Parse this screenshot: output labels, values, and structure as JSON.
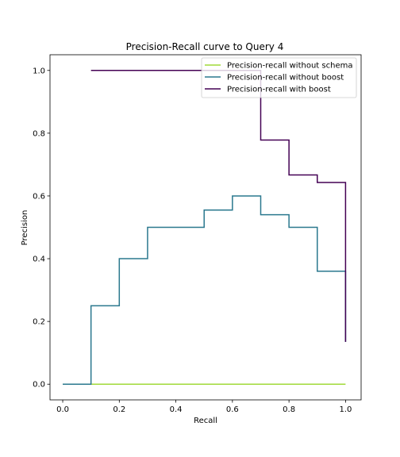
{
  "chart_data": {
    "type": "line",
    "title": "Precision-Recall curve to Query 4",
    "xlabel": "Recall",
    "ylabel": "Precision",
    "xlim": [
      -0.045,
      1.055
    ],
    "ylim": [
      -0.05,
      1.05
    ],
    "xticks": [
      0.0,
      0.2,
      0.4,
      0.6,
      0.8,
      1.0
    ],
    "xtick_labels": [
      "0.0",
      "0.2",
      "0.4",
      "0.6",
      "0.8",
      "1.0"
    ],
    "yticks": [
      0.0,
      0.2,
      0.4,
      0.6,
      0.8,
      1.0
    ],
    "ytick_labels": [
      "0.0",
      "0.2",
      "0.4",
      "0.6",
      "0.8",
      "1.0"
    ],
    "grid": false,
    "legend_position": "upper right",
    "series": [
      {
        "name": "Precision-recall without schema",
        "color": "#a0da39",
        "step": "post",
        "x": [
          0.0,
          1.0
        ],
        "y": [
          0.0,
          0.0
        ]
      },
      {
        "name": "Precision-recall without boost",
        "color": "#2a788e",
        "step": "post",
        "x": [
          0.0,
          0.1,
          0.2,
          0.3,
          0.4,
          0.5,
          0.6,
          0.7,
          0.8,
          0.9,
          1.0,
          1.0
        ],
        "y": [
          0.0,
          0.25,
          0.4,
          0.5,
          0.5,
          0.555,
          0.6,
          0.54,
          0.5,
          0.36,
          0.36,
          0.135
        ]
      },
      {
        "name": "Precision-recall with boost",
        "color": "#440154",
        "step": "post",
        "x": [
          0.1,
          0.2,
          0.3,
          0.4,
          0.5,
          0.6,
          0.7,
          0.8,
          0.9,
          1.0,
          1.0
        ],
        "y": [
          1.0,
          1.0,
          1.0,
          1.0,
          1.0,
          1.0,
          0.778,
          0.667,
          0.643,
          0.643,
          0.135
        ]
      }
    ]
  }
}
